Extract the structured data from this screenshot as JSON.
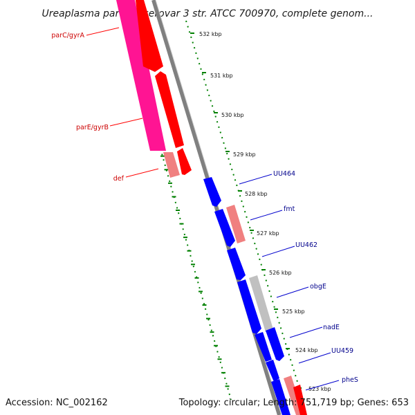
{
  "title": "Ureaplasma parvum serovar 3 str. ATCC 700970, complete genom...",
  "footer": {
    "accession": "Accession: NC_002162",
    "info": "Topology: circular; Length: 751,719 bp; Genes: 653"
  },
  "colors": {
    "ruler": "#008000",
    "backbone": "#808080",
    "forward": "#ff0000",
    "reverse": "#0000ff",
    "cds": "#ff1493",
    "pink": "#f08080",
    "gray": "#c0c0c0",
    "label_red": "#cc0000",
    "label_blue": "#00008b"
  },
  "ruler_ticks": [
    "532 kbp",
    "531 kbp",
    "530 kbp",
    "529 kbp",
    "528 kbp",
    "527 kbp",
    "526 kbp",
    "525 kbp",
    "524 kbp",
    "523 kbp"
  ],
  "gene_labels_left": [
    {
      "name": "parC/gyrA"
    },
    {
      "name": "parE/gyrB"
    },
    {
      "name": "def"
    }
  ],
  "gene_labels_right": [
    {
      "name": "UU464"
    },
    {
      "name": "fmt"
    },
    {
      "name": "UU462"
    },
    {
      "name": "obgE"
    },
    {
      "name": "nadE"
    },
    {
      "name": "UU459"
    },
    {
      "name": "pheS"
    }
  ]
}
